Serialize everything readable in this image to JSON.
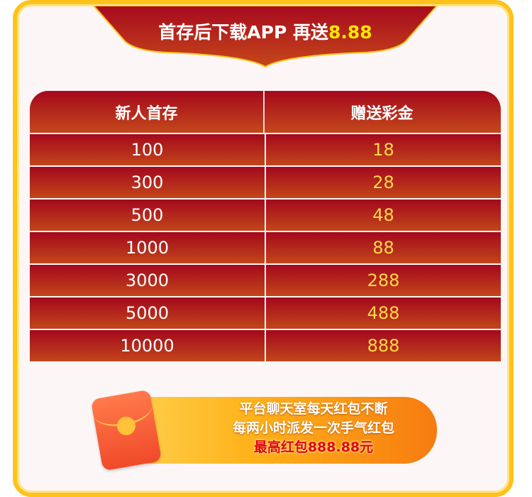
{
  "banner": {
    "title": "首存后下载APP 再送",
    "amount": "8.88"
  },
  "table": {
    "headers": [
      "新人首存",
      "赠送彩金"
    ],
    "rows": [
      [
        "100",
        "18"
      ],
      [
        "300",
        "28"
      ],
      [
        "500",
        "48"
      ],
      [
        "1000",
        "88"
      ],
      [
        "3000",
        "288"
      ],
      [
        "5000",
        "488"
      ],
      [
        "10000",
        "888"
      ]
    ]
  },
  "promo": {
    "line1": "平台聊天室每天红包不断",
    "line2": "每两小时派发一次手气红包",
    "line3": "最高红包888.88元",
    "icon": "red-envelope-icon"
  },
  "colors": {
    "frame": "#ffc21a",
    "table_red": "#a5081d",
    "bonus_text": "#ffd84a"
  }
}
